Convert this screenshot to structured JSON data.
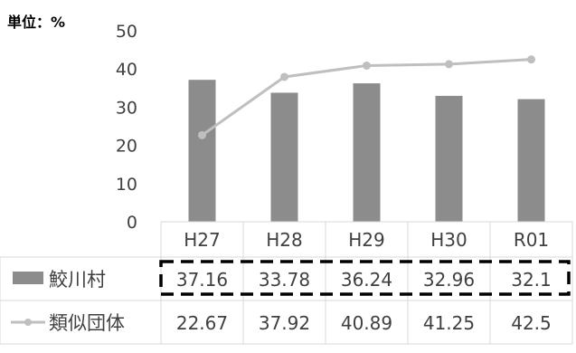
{
  "chart_data": {
    "type": "bar",
    "unit_label": "単位：%",
    "categories": [
      "H27",
      "H28",
      "H29",
      "H30",
      "R01"
    ],
    "ylim": [
      0,
      50
    ],
    "yticks": [
      0,
      10,
      20,
      30,
      40,
      50
    ],
    "series": [
      {
        "name": "鮫川村",
        "kind": "bar",
        "color": "#8c8c8c",
        "values": [
          37.16,
          33.78,
          36.24,
          32.96,
          32.1
        ],
        "labels": [
          "37.16",
          "33.78",
          "36.24",
          "32.96",
          "32.1"
        ]
      },
      {
        "name": "類似団体",
        "kind": "line",
        "color": "#bfbfbf",
        "values": [
          22.67,
          37.92,
          40.89,
          41.25,
          42.5
        ],
        "labels": [
          "22.67",
          "37.92",
          "40.89",
          "41.25",
          "42.5"
        ]
      }
    ],
    "grid": false,
    "legend": "data-table",
    "highlight_row": "鮫川村"
  }
}
